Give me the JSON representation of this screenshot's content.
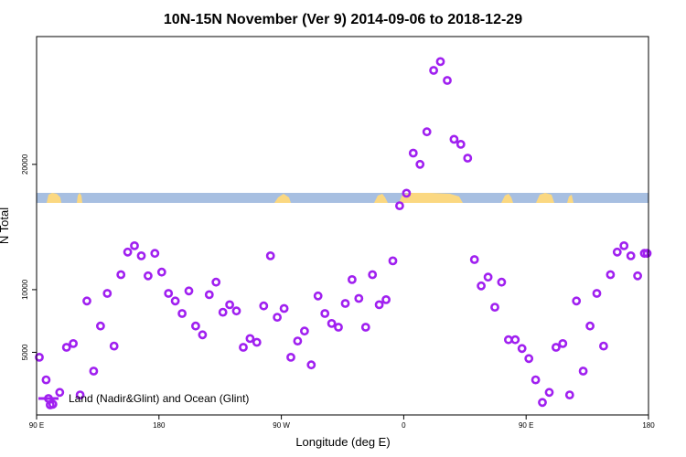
{
  "chart_data": {
    "type": "scatter",
    "title": "10N-15N November (Ver 9)   2014-09-06 to 2018-12-29",
    "xlabel": "Longitude (deg E)",
    "ylabel": "N Total",
    "x_ticks": [
      {
        "value": 90,
        "label": "90 E"
      },
      {
        "value": 180,
        "label": "180"
      },
      {
        "value": 270,
        "label": "90 W"
      },
      {
        "value": 360,
        "label": "0"
      },
      {
        "value": 450,
        "label": "90 E"
      },
      {
        "value": 540,
        "label": "180"
      }
    ],
    "y_ticks": [
      {
        "value": 5000,
        "label": "5000"
      },
      {
        "value": 10000,
        "label": "10000"
      },
      {
        "value": 20000,
        "label": "20000"
      }
    ],
    "xlim": [
      90,
      540
    ],
    "ylim": [
      0,
      30200
    ],
    "series": [
      {
        "name": "Land (Nadir&Glint) and Ocean (Glint)",
        "color": "#a020f0",
        "x": [
          92,
          97,
          100,
          102,
          107,
          112,
          117,
          122,
          127,
          132,
          137,
          142,
          147,
          152,
          157,
          162,
          167,
          172,
          177,
          182,
          187,
          192,
          197,
          202,
          207,
          212,
          217,
          222,
          227,
          232,
          237,
          242,
          247,
          252,
          257,
          262,
          267,
          272,
          277,
          282,
          287,
          292,
          297,
          302,
          307,
          312,
          317,
          322,
          327,
          332,
          337,
          342,
          347,
          352,
          357,
          362,
          367,
          372,
          377,
          382,
          387,
          392,
          397,
          402,
          407,
          412,
          417,
          422,
          427,
          432,
          437,
          442,
          447,
          452,
          457,
          462,
          467,
          472,
          477,
          482,
          487,
          492,
          497,
          502,
          507,
          512,
          517,
          522,
          527,
          532,
          537,
          539
        ],
        "y": [
          4600,
          2800,
          800,
          850,
          1800,
          5400,
          5700,
          1600,
          9100,
          3500,
          7100,
          9700,
          5500,
          11200,
          13000,
          13500,
          12700,
          11100,
          12900,
          11400,
          9700,
          9100,
          8100,
          9900,
          7100,
          6400,
          9600,
          10600,
          8200,
          8800,
          8300,
          5400,
          6100,
          5800,
          8700,
          12700,
          7800,
          8500,
          4600,
          5900,
          6700,
          4000,
          9500,
          8100,
          7300,
          7000,
          8900,
          10800,
          9300,
          7000,
          11200,
          8800,
          9200,
          12300,
          16700,
          17700,
          20900,
          20000,
          22600,
          27500,
          28200,
          26700,
          22000,
          21600,
          20500,
          12400,
          10300,
          11000,
          8600,
          10600,
          6000,
          6000,
          5300,
          4500,
          2800,
          1000,
          1800,
          5400,
          5700,
          1600,
          9100,
          3500,
          7100,
          9700,
          5500,
          11200,
          13000,
          13500,
          12700,
          11100,
          12900,
          12900
        ]
      }
    ],
    "legend_position": "bottom-left",
    "grid": false
  }
}
